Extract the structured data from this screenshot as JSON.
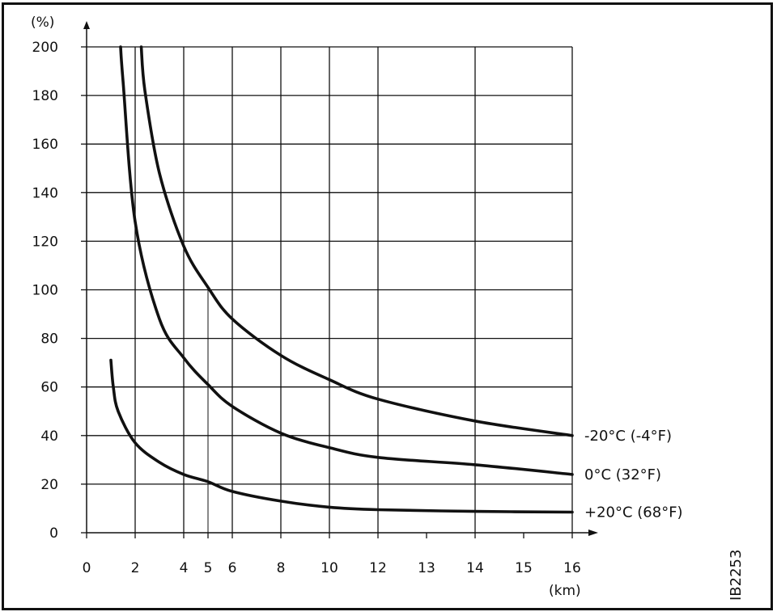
{
  "chart_data": {
    "type": "line",
    "y_unit": "(%)",
    "x_unit": "(km)",
    "figure_code": "IB2253",
    "x_ticks": [
      "0",
      "2",
      "4",
      "5",
      "6",
      "8",
      "10",
      "12",
      "13",
      "14",
      "15",
      "16"
    ],
    "y_ticks": [
      "0",
      "20",
      "40",
      "60",
      "80",
      "100",
      "120",
      "140",
      "160",
      "180",
      "200"
    ],
    "ylim": [
      0,
      200
    ],
    "grid": true,
    "series": [
      {
        "name": "-20°C (-4°F)",
        "x": [
          2.25,
          2.4,
          3,
          4,
          5,
          6,
          8,
          10,
          12,
          14,
          16
        ],
        "y": [
          200,
          182,
          148,
          118,
          101,
          88,
          73,
          63,
          55,
          46,
          40
        ]
      },
      {
        "name": "0°C (32°F)",
        "x": [
          1.4,
          1.5,
          2,
          3,
          4,
          5,
          6,
          8,
          10,
          12,
          14,
          16
        ],
        "y": [
          200,
          186,
          128,
          88,
          72,
          61,
          52,
          41,
          35,
          31,
          28,
          24
        ]
      },
      {
        "name": "+20°C (68°F)",
        "x": [
          1,
          1.1,
          1.3,
          2,
          3,
          4,
          5,
          6,
          8,
          10,
          12,
          14,
          16
        ],
        "y": [
          71,
          60,
          50,
          37,
          29,
          24,
          21,
          17,
          13,
          10.5,
          9.5,
          8.8,
          8.5
        ]
      }
    ]
  }
}
